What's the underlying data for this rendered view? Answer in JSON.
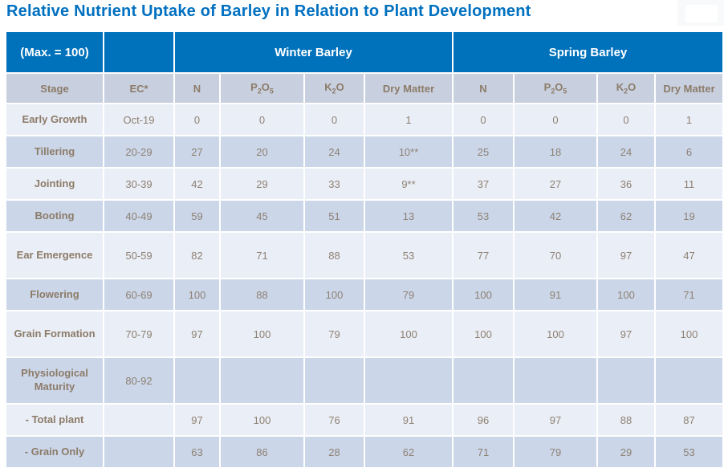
{
  "title": "Relative Nutrient Uptake of Barley in Relation to Plant Development",
  "colors": {
    "title_blue": "#0070C0",
    "header_blue": "#0072BC",
    "column_header_bg": "#C8D0E0",
    "row_light": "#EAEEF6",
    "row_dark": "#CBD6E9",
    "label_text": "#8C7B68",
    "value_text": "#8E8173"
  },
  "chart_data": {
    "type": "table",
    "title": "Relative Nutrient Uptake of Barley in Relation to Plant Development",
    "max_label": "(Max. = 100)",
    "group_headers": [
      "Winter Barley",
      "Spring Barley"
    ],
    "columns": [
      "Stage",
      "EC*",
      "N",
      "P2O5",
      "K2O",
      "Dry Matter",
      "N",
      "P2O5",
      "K2O",
      "Dry Matter"
    ],
    "rows": [
      {
        "stage": "Early Growth",
        "ec": "Oct-19",
        "winter": [
          "0",
          "0",
          "0",
          "1"
        ],
        "spring": [
          "0",
          "0",
          "0",
          "1"
        ]
      },
      {
        "stage": "Tillering",
        "ec": "20-29",
        "winter": [
          "27",
          "20",
          "24",
          "10**"
        ],
        "spring": [
          "25",
          "18",
          "24",
          "6"
        ]
      },
      {
        "stage": "Jointing",
        "ec": "30-39",
        "winter": [
          "42",
          "29",
          "33",
          "9**"
        ],
        "spring": [
          "37",
          "27",
          "36",
          "11"
        ]
      },
      {
        "stage": "Booting",
        "ec": "40-49",
        "winter": [
          "59",
          "45",
          "51",
          "13"
        ],
        "spring": [
          "53",
          "42",
          "62",
          "19"
        ]
      },
      {
        "stage": "Ear Emergence",
        "ec": "50-59",
        "winter": [
          "82",
          "71",
          "88",
          "53"
        ],
        "spring": [
          "77",
          "70",
          "97",
          "47"
        ]
      },
      {
        "stage": "Flowering",
        "ec": "60-69",
        "winter": [
          "100",
          "88",
          "100",
          "79"
        ],
        "spring": [
          "100",
          "91",
          "100",
          "71"
        ]
      },
      {
        "stage": "Grain Formation",
        "ec": "70-79",
        "winter": [
          "97",
          "100",
          "79",
          "100"
        ],
        "spring": [
          "100",
          "100",
          "97",
          "100"
        ]
      },
      {
        "stage": "Physiological Maturity",
        "ec": "80-92",
        "winter": [
          "",
          "",
          "",
          ""
        ],
        "spring": [
          "",
          "",
          "",
          ""
        ]
      },
      {
        "stage": "- Total plant",
        "ec": "",
        "winter": [
          "97",
          "100",
          "76",
          "91"
        ],
        "spring": [
          "96",
          "97",
          "88",
          "87"
        ]
      },
      {
        "stage": "- Grain Only",
        "ec": "",
        "winter": [
          "63",
          "86",
          "28",
          "62"
        ],
        "spring": [
          "71",
          "79",
          "29",
          "53"
        ]
      }
    ]
  }
}
